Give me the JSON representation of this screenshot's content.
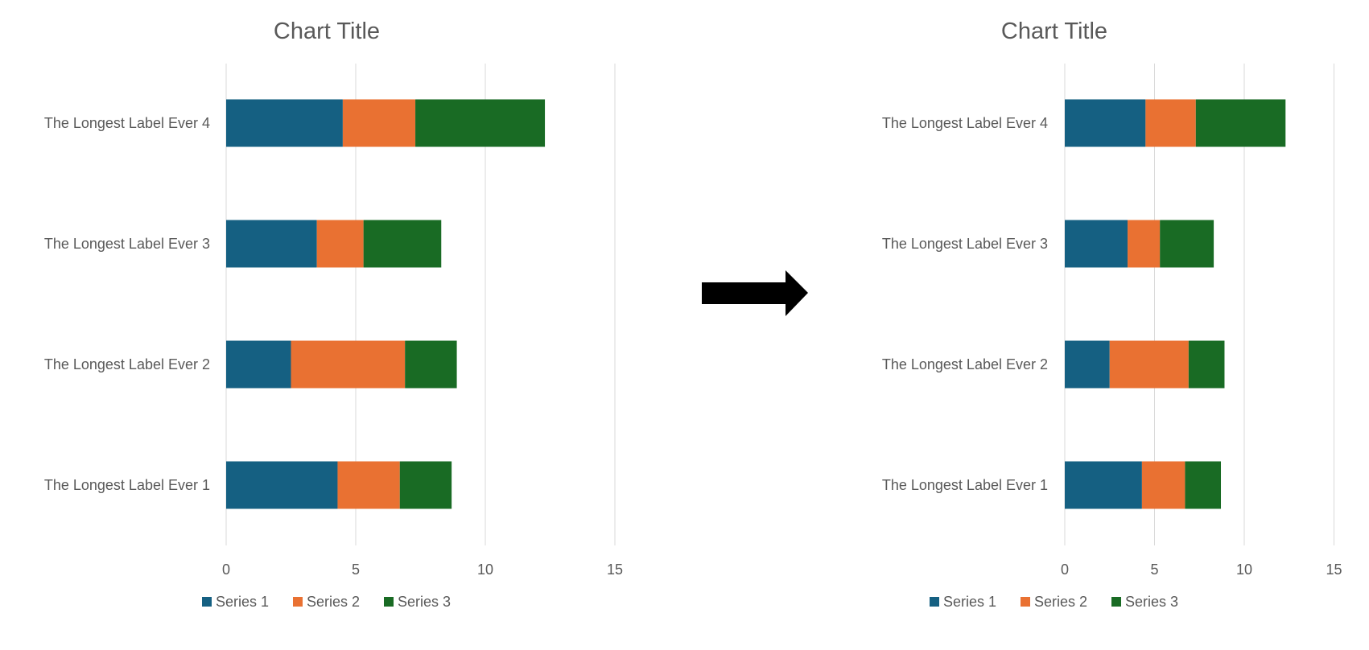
{
  "chart_data": [
    {
      "type": "bar",
      "orientation": "horizontal",
      "stacked": true,
      "title": "Chart Title",
      "categories": [
        "The Longest Label Ever 1",
        "The Longest Label Ever 2",
        "The Longest Label Ever 3",
        "The Longest Label Ever 4"
      ],
      "series": [
        {
          "name": "Series 1",
          "values": [
            4.3,
            2.5,
            3.5,
            4.5
          ],
          "color": "#156082"
        },
        {
          "name": "Series 2",
          "values": [
            2.4,
            4.4,
            1.8,
            2.8
          ],
          "color": "#E97132"
        },
        {
          "name": "Series 3",
          "values": [
            2.0,
            2.0,
            3.0,
            5.0
          ],
          "color": "#196B24"
        }
      ],
      "xlim": [
        0,
        15
      ],
      "xticks": [
        "0",
        "5",
        "10",
        "15"
      ],
      "grid": true,
      "legend": "bottom"
    },
    {
      "type": "bar",
      "orientation": "horizontal",
      "stacked": true,
      "title": "Chart Title",
      "categories": [
        "The Longest Label Ever 1",
        "The Longest Label Ever 2",
        "The Longest Label Ever 3",
        "The Longest Label Ever 4"
      ],
      "series": [
        {
          "name": "Series 1",
          "values": [
            4.3,
            2.5,
            3.5,
            4.5
          ],
          "color": "#156082"
        },
        {
          "name": "Series 2",
          "values": [
            2.4,
            4.4,
            1.8,
            2.8
          ],
          "color": "#E97132"
        },
        {
          "name": "Series 3",
          "values": [
            2.0,
            2.0,
            3.0,
            5.0
          ],
          "color": "#196B24"
        }
      ],
      "xlim": [
        0,
        15
      ],
      "xticks": [
        "0",
        "5",
        "10",
        "15"
      ],
      "grid": true,
      "legend": "bottom"
    }
  ],
  "arrow": {
    "icon": "right-arrow-icon",
    "color": "#000000"
  },
  "colors": {
    "text": "#595959",
    "grid": "#D9D9D9"
  }
}
